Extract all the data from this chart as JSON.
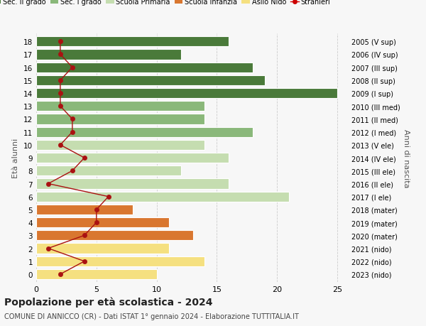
{
  "ages": [
    18,
    17,
    16,
    15,
    14,
    13,
    12,
    11,
    10,
    9,
    8,
    7,
    6,
    5,
    4,
    3,
    2,
    1,
    0
  ],
  "years": [
    "2005 (V sup)",
    "2006 (IV sup)",
    "2007 (III sup)",
    "2008 (II sup)",
    "2009 (I sup)",
    "2010 (III med)",
    "2011 (II med)",
    "2012 (I med)",
    "2013 (V ele)",
    "2014 (IV ele)",
    "2015 (III ele)",
    "2016 (II ele)",
    "2017 (I ele)",
    "2018 (mater)",
    "2019 (mater)",
    "2020 (mater)",
    "2021 (nido)",
    "2022 (nido)",
    "2023 (nido)"
  ],
  "bar_values": [
    16,
    12,
    18,
    19,
    25,
    14,
    14,
    18,
    14,
    16,
    12,
    16,
    21,
    8,
    11,
    13,
    11,
    14,
    10
  ],
  "bar_colors": [
    "#4a7a3a",
    "#4a7a3a",
    "#4a7a3a",
    "#4a7a3a",
    "#4a7a3a",
    "#8ab87a",
    "#8ab87a",
    "#8ab87a",
    "#c5ddb0",
    "#c5ddb0",
    "#c5ddb0",
    "#c5ddb0",
    "#c5ddb0",
    "#d97730",
    "#d97730",
    "#d97730",
    "#f5e080",
    "#f5e080",
    "#f5e080"
  ],
  "stranieri_values": [
    2,
    2,
    3,
    2,
    2,
    2,
    3,
    3,
    2,
    4,
    3,
    1,
    6,
    5,
    5,
    4,
    1,
    4,
    2
  ],
  "stranieri_color": "#aa1111",
  "title": "Popolazione per età scolastica - 2024",
  "subtitle": "COMUNE DI ANNICCO (CR) - Dati ISTAT 1° gennaio 2024 - Elaborazione TUTTITALIA.IT",
  "ylabel_left": "Età alunni",
  "ylabel_right": "Anni di nascita",
  "xlim": [
    0,
    26
  ],
  "legend_labels": [
    "Sec. II grado",
    "Sec. I grado",
    "Scuola Primaria",
    "Scuola Infanzia",
    "Asilo Nido",
    "Stranieri"
  ],
  "legend_colors": [
    "#4a7a3a",
    "#8ab87a",
    "#c5ddb0",
    "#d97730",
    "#f5e080",
    "#cc0000"
  ],
  "bg_color": "#f7f7f7",
  "bar_height": 0.78,
  "grid_color": "#cccccc",
  "xticks": [
    0,
    5,
    10,
    15,
    20,
    25
  ]
}
